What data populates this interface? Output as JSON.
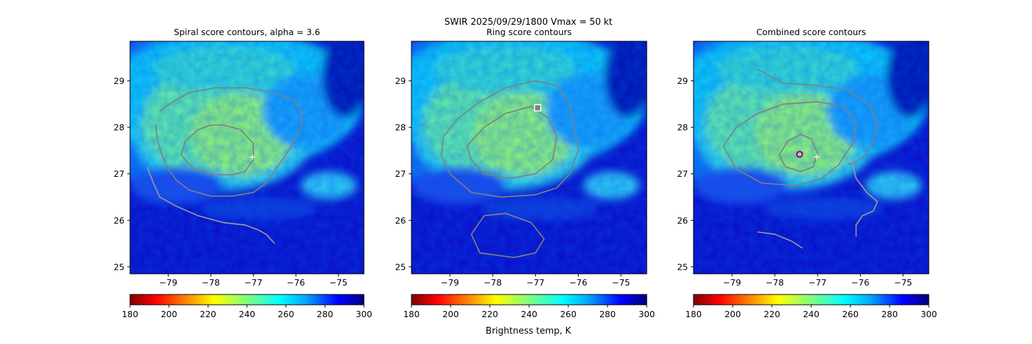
{
  "figure": {
    "suptitle_line1": "SWIR  2025/09/29/1800    Vmax = 50 kt",
    "colorbar_label": "Brightness temp, K",
    "colormap": "jet_r"
  },
  "chart_data": [
    {
      "type": "heatmap",
      "title": "Spiral score contours, alpha =  3.6",
      "xlabel": "",
      "ylabel": "",
      "xlim": [
        -79.9,
        -74.4
      ],
      "ylim": [
        24.85,
        29.85
      ],
      "x_ticks": [
        -79,
        -78,
        -77,
        -76,
        -75
      ],
      "y_ticks": [
        25,
        26,
        27,
        28,
        29
      ],
      "grid": false,
      "overlays": [
        {
          "type": "contour",
          "color": "#808080",
          "closed": true,
          "points": [
            [
              -78.7,
              27.4
            ],
            [
              -78.6,
              27.7
            ],
            [
              -78.3,
              27.95
            ],
            [
              -78.0,
              28.05
            ],
            [
              -77.7,
              28.05
            ],
            [
              -77.3,
              27.95
            ],
            [
              -77.0,
              27.65
            ],
            [
              -77.0,
              27.3
            ],
            [
              -77.2,
              27.05
            ],
            [
              -77.5,
              26.98
            ],
            [
              -77.9,
              26.98
            ],
            [
              -78.4,
              27.1
            ]
          ]
        },
        {
          "type": "contour",
          "color": "#808080",
          "closed": false,
          "points": [
            [
              -79.3,
              28.05
            ],
            [
              -79.25,
              27.7
            ],
            [
              -79.15,
              27.4
            ],
            [
              -79.0,
              27.1
            ],
            [
              -78.8,
              26.85
            ],
            [
              -78.5,
              26.65
            ],
            [
              -78.0,
              26.52
            ],
            [
              -77.5,
              26.52
            ],
            [
              -77.0,
              26.6
            ],
            [
              -76.7,
              26.8
            ],
            [
              -76.4,
              27.2
            ],
            [
              -76.1,
              27.6
            ],
            [
              -75.9,
              27.95
            ],
            [
              -75.85,
              28.25
            ],
            [
              -76.0,
              28.55
            ],
            [
              -76.5,
              28.75
            ],
            [
              -77.2,
              28.85
            ],
            [
              -77.9,
              28.85
            ],
            [
              -78.5,
              28.75
            ],
            [
              -78.9,
              28.55
            ],
            [
              -79.2,
              28.35
            ]
          ]
        },
        {
          "type": "contour",
          "color": "#9a9a9a",
          "closed": false,
          "points": [
            [
              -79.5,
              27.15
            ],
            [
              -79.35,
              26.8
            ],
            [
              -79.2,
              26.5
            ],
            [
              -78.8,
              26.3
            ],
            [
              -78.3,
              26.1
            ],
            [
              -77.7,
              25.95
            ],
            [
              -77.2,
              25.9
            ],
            [
              -76.9,
              25.8
            ],
            [
              -76.7,
              25.7
            ],
            [
              -76.5,
              25.5
            ]
          ]
        }
      ],
      "markers": [
        {
          "label": "best-track center",
          "x": -77.02,
          "y": 27.36,
          "symbol": "+",
          "color": "#ffffff"
        }
      ]
    },
    {
      "type": "heatmap",
      "title": "Ring score contours",
      "xlabel": "",
      "ylabel": "",
      "xlim": [
        -79.9,
        -74.4
      ],
      "ylim": [
        24.85,
        29.85
      ],
      "x_ticks": [
        -79,
        -78,
        -77,
        -76,
        -75
      ],
      "y_ticks": [
        25,
        26,
        27,
        28,
        29
      ],
      "grid": false,
      "overlays": [
        {
          "type": "contour",
          "color": "#808080",
          "closed": true,
          "points": [
            [
              -79.15,
              27.8
            ],
            [
              -78.8,
              28.2
            ],
            [
              -78.3,
              28.55
            ],
            [
              -77.7,
              28.85
            ],
            [
              -77.0,
              29.0
            ],
            [
              -76.5,
              28.9
            ],
            [
              -76.2,
              28.5
            ],
            [
              -76.1,
              28.0
            ],
            [
              -76.0,
              27.5
            ],
            [
              -76.2,
              27.0
            ],
            [
              -76.5,
              26.7
            ],
            [
              -77.0,
              26.55
            ],
            [
              -77.8,
              26.5
            ],
            [
              -78.5,
              26.6
            ],
            [
              -79.0,
              27.0
            ],
            [
              -79.2,
              27.4
            ]
          ]
        },
        {
          "type": "contour",
          "color": "#808080",
          "closed": true,
          "points": [
            [
              -78.6,
              27.6
            ],
            [
              -78.2,
              28.0
            ],
            [
              -77.7,
              28.3
            ],
            [
              -77.1,
              28.45
            ],
            [
              -76.7,
              28.2
            ],
            [
              -76.5,
              27.8
            ],
            [
              -76.6,
              27.3
            ],
            [
              -77.0,
              27.0
            ],
            [
              -77.6,
              26.9
            ],
            [
              -78.2,
              27.0
            ],
            [
              -78.5,
              27.3
            ]
          ]
        },
        {
          "type": "contour",
          "color": "#808080",
          "closed": true,
          "points": [
            [
              -78.3,
              25.3
            ],
            [
              -78.5,
              25.7
            ],
            [
              -78.2,
              26.1
            ],
            [
              -77.7,
              26.15
            ],
            [
              -77.1,
              25.95
            ],
            [
              -76.8,
              25.6
            ],
            [
              -77.0,
              25.3
            ],
            [
              -77.5,
              25.2
            ]
          ]
        }
      ],
      "markers": [
        {
          "label": "ring center",
          "x": -76.95,
          "y": 28.42,
          "symbol": "square",
          "color": "#ffffff"
        }
      ]
    },
    {
      "type": "heatmap",
      "title": "Combined score contours",
      "xlabel": "",
      "ylabel": "",
      "xlim": [
        -79.9,
        -74.4
      ],
      "ylim": [
        24.85,
        29.85
      ],
      "x_ticks": [
        -79,
        -78,
        -77,
        -76,
        -75
      ],
      "y_ticks": [
        25,
        26,
        27,
        28,
        29
      ],
      "grid": false,
      "overlays": [
        {
          "type": "contour",
          "color": "#808080",
          "closed": true,
          "points": [
            [
              -77.9,
              27.4
            ],
            [
              -77.7,
              27.7
            ],
            [
              -77.4,
              27.85
            ],
            [
              -77.15,
              27.75
            ],
            [
              -77.0,
              27.45
            ],
            [
              -77.1,
              27.15
            ],
            [
              -77.4,
              27.05
            ],
            [
              -77.75,
              27.15
            ]
          ]
        },
        {
          "type": "contour",
          "color": "#808080",
          "closed": true,
          "points": [
            [
              -79.2,
              27.6
            ],
            [
              -78.9,
              28.0
            ],
            [
              -78.4,
              28.3
            ],
            [
              -77.8,
              28.5
            ],
            [
              -77.0,
              28.55
            ],
            [
              -76.4,
              28.45
            ],
            [
              -76.1,
              28.1
            ],
            [
              -76.15,
              27.7
            ],
            [
              -76.5,
              27.2
            ],
            [
              -76.9,
              26.9
            ],
            [
              -77.5,
              26.75
            ],
            [
              -78.3,
              26.8
            ],
            [
              -78.9,
              27.1
            ]
          ]
        },
        {
          "type": "contour",
          "color": "#808080",
          "closed": false,
          "points": [
            [
              -78.4,
              29.25
            ],
            [
              -77.8,
              28.95
            ],
            [
              -77.0,
              28.9
            ],
            [
              -76.3,
              28.8
            ],
            [
              -75.8,
              28.5
            ],
            [
              -75.6,
              28.1
            ],
            [
              -75.7,
              27.7
            ],
            [
              -75.9,
              27.4
            ],
            [
              -76.1,
              27.25
            ],
            [
              -76.3,
              27.2
            ]
          ]
        },
        {
          "type": "contour",
          "color": "#9a9a9a",
          "closed": false,
          "points": [
            [
              -76.2,
              27.3
            ],
            [
              -76.1,
              26.9
            ],
            [
              -75.85,
              26.6
            ],
            [
              -75.6,
              26.4
            ],
            [
              -75.7,
              26.2
            ],
            [
              -75.95,
              26.1
            ],
            [
              -76.1,
              25.9
            ],
            [
              -76.1,
              25.65
            ]
          ]
        },
        {
          "type": "contour",
          "color": "#9a9a9a",
          "closed": false,
          "points": [
            [
              -78.4,
              25.75
            ],
            [
              -78.0,
              25.7
            ],
            [
              -77.6,
              25.55
            ],
            [
              -77.35,
              25.4
            ]
          ]
        }
      ],
      "markers": [
        {
          "label": "combined center",
          "x": -77.42,
          "y": 27.42,
          "symbol": "o",
          "color": "#7f007f"
        },
        {
          "label": "best-track center",
          "x": -77.02,
          "y": 27.36,
          "symbol": "+",
          "color": "#ffffff"
        }
      ]
    }
  ],
  "colorbars": [
    {
      "vmin": 180,
      "vmax": 300,
      "ticks": [
        180,
        200,
        220,
        240,
        260,
        280,
        300
      ]
    },
    {
      "vmin": 180,
      "vmax": 300,
      "ticks": [
        180,
        200,
        220,
        240,
        260,
        280,
        300
      ]
    },
    {
      "vmin": 180,
      "vmax": 300,
      "ticks": [
        180,
        200,
        220,
        240,
        260,
        280,
        300
      ]
    }
  ],
  "colors": {
    "contour": "#808080",
    "frame": "#000000",
    "background": "#ffffff"
  }
}
